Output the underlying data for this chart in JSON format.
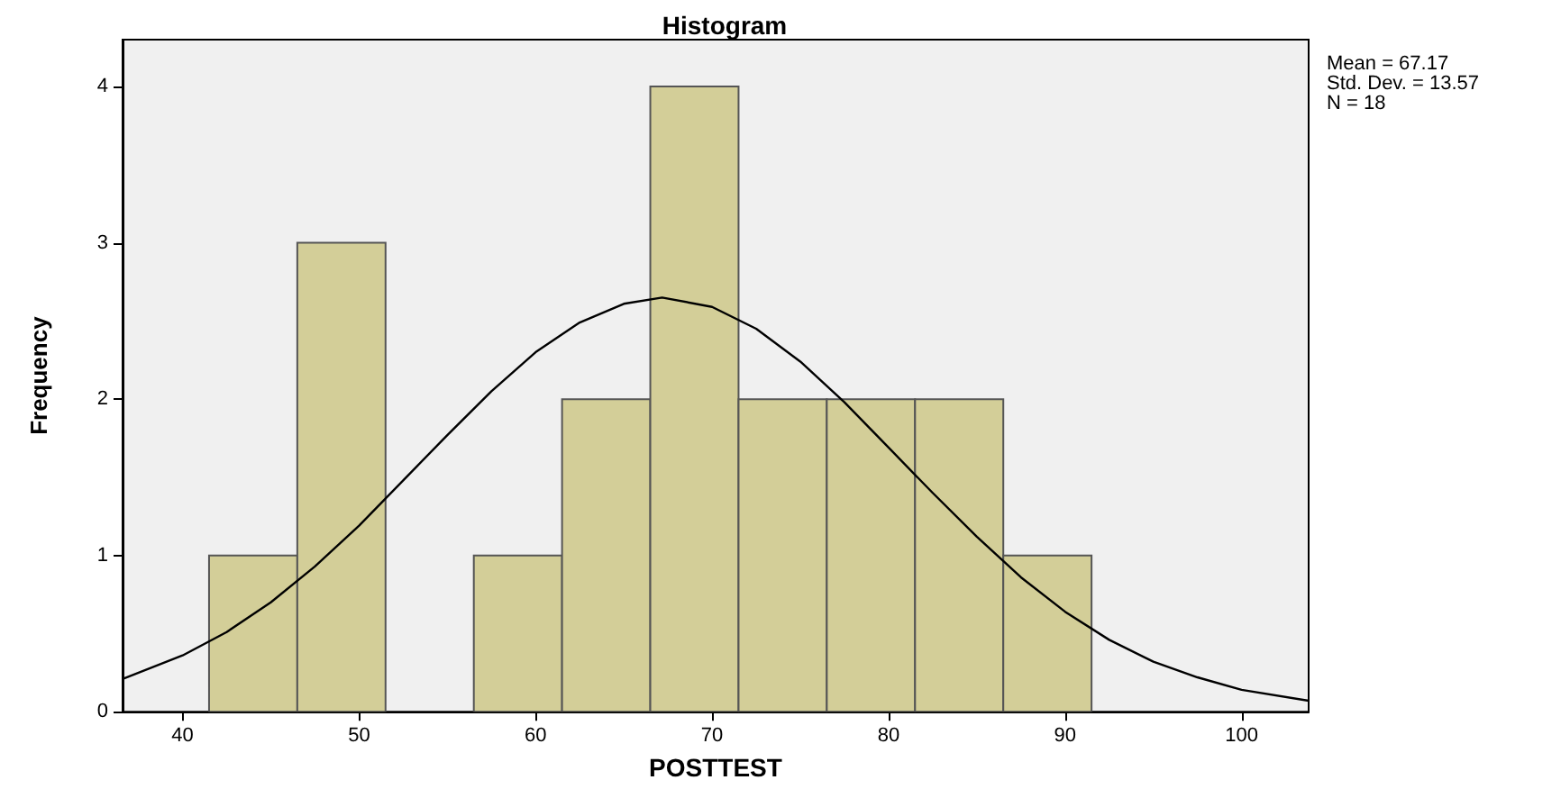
{
  "chart_data": {
    "type": "histogram",
    "title": "Histogram",
    "xlabel": "POSTTEST",
    "ylabel": "Frequency",
    "annotations": [
      "Mean = 67.17",
      "Std. Dev. = 13.57",
      "N = 18"
    ],
    "xlim": [
      36.6,
      103.8
    ],
    "xticks": [
      40,
      50,
      60,
      70,
      80,
      90,
      100
    ],
    "ylim": [
      0,
      4.3
    ],
    "yticks": [
      0,
      1,
      2,
      3,
      4
    ],
    "grid": false,
    "series": [
      {
        "color": "#d3ce98",
        "bins": [
          41.5,
          46.5,
          51.5,
          56.5,
          61.5,
          66.5,
          71.5,
          76.5,
          81.5,
          86.5,
          91.5
        ],
        "values": [
          1,
          3,
          0,
          1,
          2,
          4,
          2,
          2,
          2,
          1
        ]
      },
      {
        "type": "line",
        "color": "#000000",
        "marker": "none",
        "x": [
          36.6,
          40,
          42.5,
          45,
          47.5,
          50,
          52.5,
          55,
          57.5,
          60,
          62.5,
          65,
          67.17,
          70,
          72.5,
          75,
          77.5,
          80,
          82.5,
          85,
          87.5,
          90,
          92.5,
          95,
          97.5,
          100,
          103.8
        ],
        "values": [
          0.21,
          0.36,
          0.51,
          0.7,
          0.93,
          1.19,
          1.48,
          1.77,
          2.05,
          2.3,
          2.49,
          2.61,
          2.65,
          2.59,
          2.45,
          2.24,
          1.98,
          1.69,
          1.4,
          1.12,
          0.86,
          0.64,
          0.46,
          0.32,
          0.22,
          0.14,
          0.07
        ]
      }
    ]
  }
}
